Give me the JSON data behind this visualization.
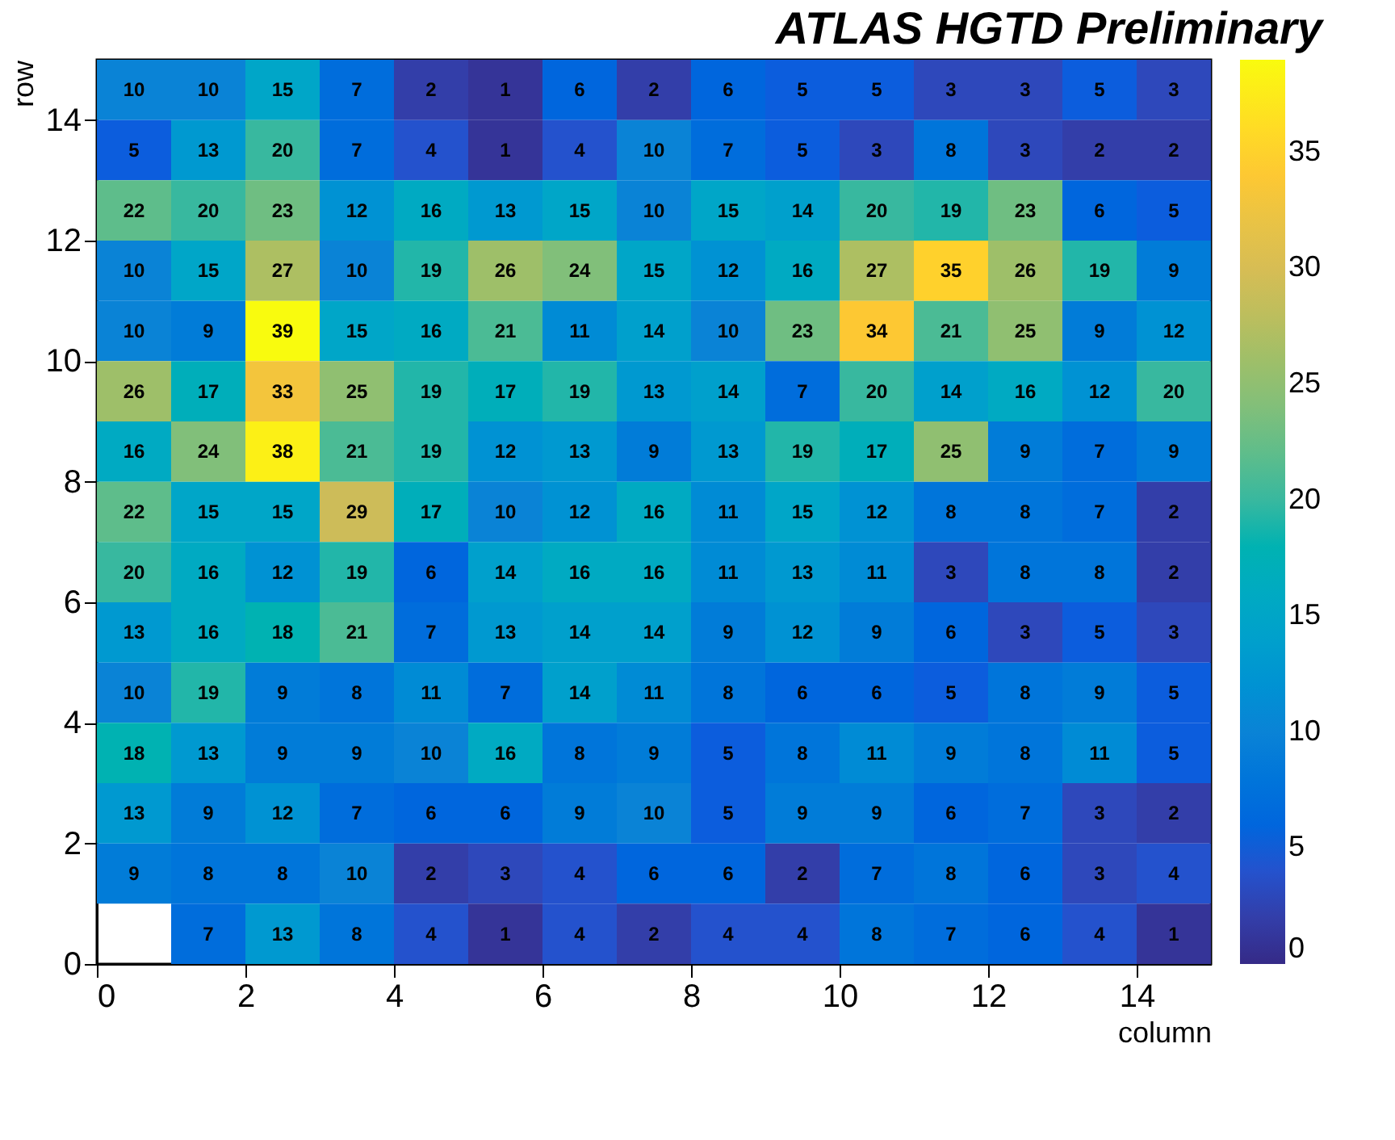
{
  "chart_data": {
    "type": "heatmap",
    "title": "ATLAS HGTD Preliminary",
    "xlabel": "column",
    "ylabel": "row",
    "xlim": [
      0,
      15
    ],
    "xticks": [
      0,
      2,
      4,
      6,
      8,
      10,
      12,
      14
    ],
    "ylim": [
      0,
      15
    ],
    "yticks": [
      0,
      2,
      4,
      6,
      8,
      10,
      12,
      14
    ],
    "clim": [
      0,
      39
    ],
    "cticks": [
      0,
      5,
      10,
      15,
      20,
      25,
      30,
      35
    ],
    "data_labels": true,
    "grid": false,
    "cells": [
      [
        10,
        10,
        15,
        7,
        2,
        1,
        6,
        2,
        6,
        5,
        5,
        3,
        3,
        5,
        3
      ],
      [
        5,
        13,
        20,
        7,
        4,
        1,
        4,
        10,
        7,
        5,
        3,
        8,
        3,
        2,
        2
      ],
      [
        22,
        20,
        23,
        12,
        16,
        13,
        15,
        10,
        15,
        14,
        20,
        19,
        23,
        6,
        5
      ],
      [
        10,
        15,
        27,
        10,
        19,
        26,
        24,
        15,
        12,
        16,
        27,
        35,
        26,
        19,
        9
      ],
      [
        10,
        9,
        39,
        15,
        16,
        21,
        11,
        14,
        10,
        23,
        34,
        21,
        25,
        9,
        12
      ],
      [
        26,
        17,
        33,
        25,
        19,
        17,
        19,
        13,
        14,
        7,
        20,
        14,
        16,
        12,
        20
      ],
      [
        16,
        24,
        38,
        21,
        19,
        12,
        13,
        9,
        13,
        19,
        17,
        25,
        9,
        7,
        9
      ],
      [
        22,
        15,
        15,
        29,
        17,
        10,
        12,
        16,
        11,
        15,
        12,
        8,
        8,
        7,
        2
      ],
      [
        20,
        16,
        12,
        19,
        6,
        14,
        16,
        16,
        11,
        13,
        11,
        3,
        8,
        8,
        2
      ],
      [
        13,
        16,
        18,
        21,
        7,
        13,
        14,
        14,
        9,
        12,
        9,
        6,
        3,
        5,
        3
      ],
      [
        10,
        19,
        9,
        8,
        11,
        7,
        14,
        11,
        8,
        6,
        6,
        5,
        8,
        9,
        5
      ],
      [
        18,
        13,
        9,
        9,
        10,
        16,
        8,
        9,
        5,
        8,
        11,
        9,
        8,
        11,
        5
      ],
      [
        13,
        9,
        12,
        7,
        6,
        6,
        9,
        10,
        5,
        9,
        9,
        6,
        7,
        3,
        2
      ],
      [
        9,
        8,
        8,
        10,
        2,
        3,
        4,
        6,
        6,
        2,
        7,
        8,
        6,
        3,
        4
      ],
      [
        null,
        7,
        13,
        8,
        4,
        1,
        4,
        2,
        4,
        4,
        8,
        7,
        6,
        4,
        1
      ]
    ]
  }
}
